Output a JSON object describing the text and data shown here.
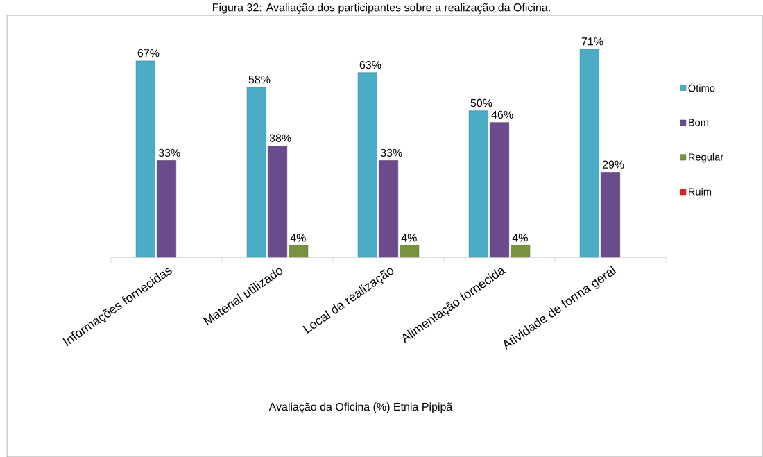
{
  "chart_data": {
    "type": "bar",
    "title": "Figura 32: Avaliação dos participantes sobre a realização da Oficina.",
    "xlabel": "Avaliação da Oficina (%) Etnia Pipipã",
    "categories": [
      "Informações fornecidas",
      "Material utilizado",
      "Local da realização",
      "Alimentação fornecida",
      "Atividade de forma geral"
    ],
    "series": [
      {
        "name": "Ótimo",
        "color": "#4bacc6",
        "values": [
          67,
          58,
          63,
          50,
          71
        ],
        "value_labels": [
          "67%",
          "58%",
          "63%",
          "50%",
          "71%"
        ]
      },
      {
        "name": "Bom",
        "color": "#6a4c8c",
        "values": [
          33,
          38,
          33,
          46,
          29
        ],
        "value_labels": [
          "33%",
          "38%",
          "33%",
          "46%",
          "29%"
        ]
      },
      {
        "name": "Regular",
        "color": "#77933c",
        "values": [
          null,
          4,
          4,
          4,
          null
        ],
        "value_labels": [
          null,
          "4%",
          "4%",
          "4%",
          null
        ]
      },
      {
        "name": "Ruim",
        "color": "#e0201e",
        "values": [
          null,
          null,
          null,
          null,
          null
        ],
        "value_labels": [
          null,
          null,
          null,
          null,
          null
        ]
      }
    ],
    "legend": "right"
  }
}
